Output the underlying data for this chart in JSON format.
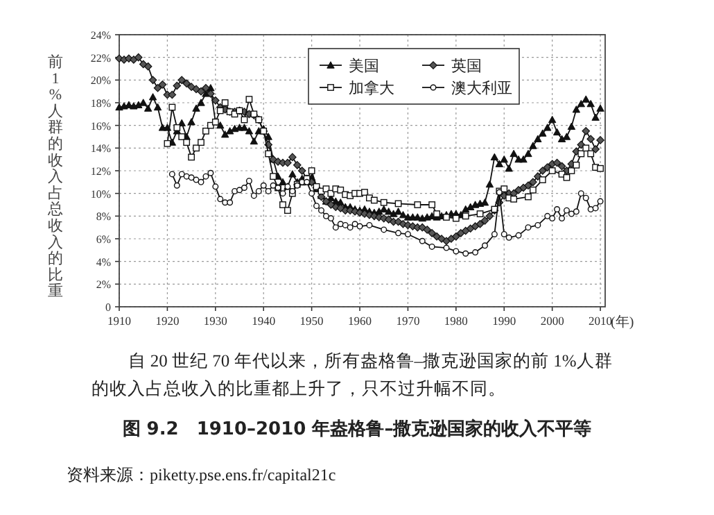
{
  "chart_data": {
    "type": "line",
    "title": "图 9.2　1910–2010 年盎格鲁–撒克逊国家的收入不平等",
    "ylabel": "前1%人群的收入占总收入的比重",
    "xlabel": "(年)",
    "annotations": [
      "自 20 世纪 70 年代以来，所有盎格鲁–撒克逊国家的前 1%人群的收入占总收入的比重都上升了，只不过升幅不同。",
      "资料来源：piketty.pse.ens.fr/capital21c"
    ],
    "xlim": [
      1910,
      2011
    ],
    "xticks": [
      1910,
      1920,
      1930,
      1940,
      1950,
      1960,
      1970,
      1980,
      1990,
      2000,
      2010
    ],
    "ylim": [
      0,
      24
    ],
    "yticks": [
      {
        "value": 0,
        "label": "0"
      },
      {
        "value": 2,
        "label": "2%"
      },
      {
        "value": 4,
        "label": "4%"
      },
      {
        "value": 6,
        "label": "6%"
      },
      {
        "value": 8,
        "label": "8%"
      },
      {
        "value": 10,
        "label": "10%"
      },
      {
        "value": 12,
        "label": "12%"
      },
      {
        "value": 14,
        "label": "14%"
      },
      {
        "value": 16,
        "label": "16%"
      },
      {
        "value": 18,
        "label": "18%"
      },
      {
        "value": 20,
        "label": "20%"
      },
      {
        "value": 22,
        "label": "22%"
      },
      {
        "value": 24,
        "label": "24%"
      }
    ],
    "grid": true,
    "legend": "top right",
    "line_style": "solid",
    "series": [
      {
        "name": "美国",
        "color": "#111111",
        "marker": "triangle",
        "x": [
          1910,
          1911,
          1912,
          1913,
          1914,
          1915,
          1916,
          1917,
          1918,
          1919,
          1920,
          1921,
          1922,
          1923,
          1924,
          1925,
          1926,
          1927,
          1928,
          1929,
          1930,
          1931,
          1932,
          1933,
          1934,
          1935,
          1936,
          1937,
          1938,
          1939,
          1940,
          1941,
          1942,
          1943,
          1944,
          1945,
          1946,
          1947,
          1948,
          1949,
          1950,
          1951,
          1952,
          1953,
          1954,
          1955,
          1956,
          1957,
          1958,
          1959,
          1960,
          1961,
          1962,
          1963,
          1964,
          1965,
          1966,
          1967,
          1968,
          1969,
          1970,
          1971,
          1972,
          1973,
          1974,
          1975,
          1976,
          1977,
          1978,
          1979,
          1980,
          1981,
          1982,
          1983,
          1984,
          1985,
          1986,
          1987,
          1988,
          1989,
          1990,
          1991,
          1992,
          1993,
          1994,
          1995,
          1996,
          1997,
          1998,
          1999,
          2000,
          2001,
          2002,
          2003,
          2004,
          2005,
          2006,
          2007,
          2008,
          2009,
          2010
        ],
        "values": [
          17.6,
          17.7,
          17.8,
          17.7,
          17.8,
          18.0,
          17.5,
          18.5,
          17.6,
          15.8,
          15.8,
          14.5,
          15.5,
          16.2,
          15.0,
          16.3,
          17.5,
          18.0,
          18.8,
          19.3,
          16.3,
          16.0,
          15.2,
          15.5,
          15.7,
          15.8,
          15.8,
          15.5,
          14.6,
          15.5,
          15.7,
          15.0,
          13.0,
          11.5,
          11.0,
          10.6,
          11.7,
          11.0,
          11.3,
          11.0,
          11.4,
          10.4,
          9.8,
          9.3,
          9.6,
          9.3,
          9.2,
          8.8,
          8.8,
          8.6,
          8.5,
          8.6,
          8.4,
          8.3,
          8.4,
          8.6,
          8.4,
          8.2,
          8.4,
          8.1,
          7.9,
          7.9,
          7.9,
          7.8,
          7.9,
          8.0,
          7.9,
          8.0,
          8.1,
          8.2,
          8.2,
          8.1,
          8.6,
          8.8,
          9.0,
          9.1,
          9.2,
          10.8,
          13.2,
          12.6,
          13.0,
          12.2,
          13.5,
          13.0,
          13.0,
          13.5,
          14.2,
          14.8,
          15.3,
          15.8,
          16.5,
          15.4,
          14.8,
          15.0,
          15.9,
          17.4,
          17.9,
          18.3,
          17.9,
          16.7,
          17.5
        ]
      },
      {
        "name": "英国",
        "color": "#111111",
        "marker": "diamond",
        "x": [
          1910,
          1911,
          1912,
          1913,
          1914,
          1915,
          1916,
          1917,
          1918,
          1919,
          1920,
          1921,
          1922,
          1923,
          1924,
          1925,
          1926,
          1927,
          1928,
          1929,
          1930,
          1931,
          1932,
          1933,
          1934,
          1935,
          1936,
          1937,
          1938,
          1939,
          1940,
          1941,
          1942,
          1943,
          1944,
          1945,
          1946,
          1947,
          1948,
          1949,
          1950,
          1951,
          1952,
          1953,
          1954,
          1955,
          1956,
          1957,
          1958,
          1959,
          1960,
          1961,
          1962,
          1963,
          1964,
          1965,
          1966,
          1967,
          1968,
          1969,
          1970,
          1971,
          1972,
          1973,
          1974,
          1975,
          1976,
          1977,
          1978,
          1979,
          1980,
          1981,
          1982,
          1983,
          1984,
          1985,
          1986,
          1987,
          1988,
          1989,
          1990,
          1991,
          1992,
          1993,
          1994,
          1995,
          1996,
          1997,
          1998,
          1999,
          2000,
          2001,
          2002,
          2003,
          2004,
          2005,
          2006,
          2007,
          2008,
          2009,
          2010
        ],
        "values": [
          21.9,
          21.8,
          21.9,
          21.8,
          22.0,
          21.4,
          21.2,
          20.0,
          19.3,
          19.6,
          18.7,
          18.7,
          19.5,
          20.0,
          19.7,
          19.4,
          19.2,
          19.0,
          19.3,
          18.8,
          18.2,
          17.6,
          17.4,
          17.2,
          17.2,
          17.3,
          17.2,
          17.0,
          16.9,
          16.5,
          15.5,
          14.3,
          13.0,
          12.8,
          12.7,
          12.7,
          13.2,
          12.5,
          12.0,
          11.3,
          11.0,
          10.5,
          9.7,
          9.3,
          9.0,
          8.8,
          8.7,
          8.5,
          8.5,
          8.4,
          8.3,
          8.2,
          8.1,
          8.0,
          7.9,
          7.8,
          7.7,
          7.5,
          7.5,
          7.3,
          7.2,
          7.1,
          7.0,
          7.0,
          6.8,
          6.5,
          6.2,
          6.0,
          5.8,
          6.0,
          6.2,
          6.5,
          6.7,
          6.9,
          7.1,
          7.3,
          7.6,
          8.0,
          8.5,
          9.2,
          9.8,
          10.0,
          10.0,
          10.3,
          10.5,
          10.7,
          11.0,
          11.5,
          12.0,
          12.3,
          12.6,
          12.7,
          12.4,
          12.0,
          12.6,
          13.7,
          14.3,
          15.5,
          14.8,
          13.9,
          14.7
        ]
      },
      {
        "name": "加拿大",
        "color": "#111111",
        "marker": "square",
        "x": [
          1920,
          1921,
          1922,
          1923,
          1924,
          1925,
          1926,
          1927,
          1928,
          1929,
          1930,
          1931,
          1932,
          1933,
          1934,
          1935,
          1936,
          1937,
          1938,
          1939,
          1940,
          1941,
          1942,
          1943,
          1944,
          1945,
          1946,
          1947,
          1948,
          1949,
          1950,
          1951,
          1952,
          1953,
          1954,
          1955,
          1956,
          1957,
          1958,
          1959,
          1960,
          1961,
          1962,
          1963,
          1965,
          1968,
          1972,
          1975,
          1976,
          1978,
          1980,
          1982,
          1985,
          1988,
          1989,
          1990,
          1991,
          1992,
          1995,
          1996,
          1998,
          2000,
          2002,
          2003,
          2004,
          2005,
          2006,
          2007,
          2008,
          2009,
          2010
        ],
        "values": [
          14.4,
          17.6,
          15.8,
          15.0,
          14.5,
          13.2,
          14.0,
          14.5,
          15.5,
          16.0,
          16.3,
          17.3,
          18.0,
          17.2,
          17.0,
          17.3,
          16.5,
          18.3,
          17.0,
          16.5,
          15.5,
          13.5,
          11.5,
          10.5,
          9.0,
          8.5,
          10.0,
          10.8,
          11.0,
          11.3,
          12.0,
          10.6,
          10.2,
          10.4,
          10.0,
          10.4,
          10.3,
          9.9,
          9.8,
          10.0,
          10.0,
          10.1,
          9.6,
          9.4,
          9.2,
          9.1,
          9.0,
          9.0,
          8.2,
          7.9,
          7.8,
          8.0,
          8.2,
          8.6,
          10.2,
          10.4,
          9.6,
          9.5,
          9.7,
          10.3,
          11.2,
          12.0,
          11.7,
          11.4,
          12.0,
          12.5,
          13.5,
          14.0,
          13.5,
          12.3,
          12.2
        ]
      },
      {
        "name": "澳大利亚",
        "color": "#111111",
        "marker": "circle",
        "x": [
          1921,
          1922,
          1923,
          1924,
          1925,
          1926,
          1927,
          1928,
          1929,
          1930,
          1931,
          1932,
          1933,
          1934,
          1935,
          1936,
          1937,
          1938,
          1939,
          1940,
          1941,
          1942,
          1943,
          1944,
          1945,
          1946,
          1947,
          1948,
          1949,
          1950,
          1951,
          1952,
          1953,
          1954,
          1955,
          1956,
          1957,
          1958,
          1959,
          1960,
          1962,
          1965,
          1968,
          1970,
          1973,
          1975,
          1978,
          1980,
          1982,
          1984,
          1986,
          1988,
          1989,
          1990,
          1991,
          1993,
          1995,
          1997,
          1999,
          2000,
          2001,
          2002,
          2003,
          2004,
          2005,
          2006,
          2007,
          2008,
          2009,
          2010
        ],
        "values": [
          11.7,
          10.7,
          11.7,
          11.5,
          11.4,
          11.2,
          11.0,
          11.5,
          11.8,
          10.6,
          9.5,
          9.2,
          9.2,
          10.2,
          10.3,
          10.5,
          11.1,
          9.8,
          10.2,
          10.7,
          10.2,
          10.7,
          10.5,
          10.0,
          10.6,
          10.2,
          10.7,
          11.0,
          11.0,
          10.0,
          8.9,
          8.5,
          8.0,
          7.8,
          7.0,
          7.3,
          7.2,
          7.0,
          7.3,
          7.1,
          7.2,
          6.8,
          6.5,
          6.4,
          5.8,
          5.3,
          5.2,
          4.9,
          4.7,
          4.8,
          5.4,
          6.4,
          10.1,
          6.4,
          6.1,
          6.3,
          7.0,
          7.2,
          8.0,
          7.8,
          8.6,
          7.8,
          8.5,
          8.2,
          8.4,
          10.0,
          9.6,
          8.6,
          8.7,
          9.3
        ]
      }
    ]
  }
}
